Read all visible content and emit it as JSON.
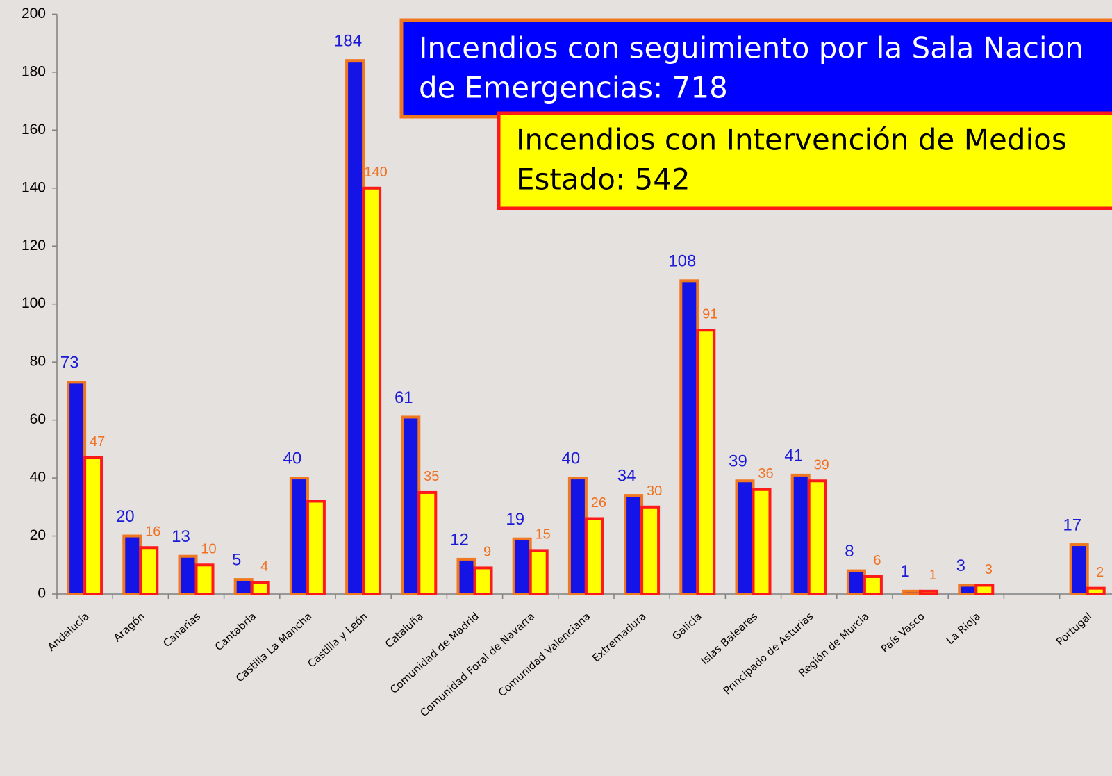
{
  "chart_data": {
    "type": "bar",
    "categories": [
      "Andalucía",
      "Aragón",
      "Canarias",
      "Cantabria",
      "Castilla La Mancha",
      "Castilla y León",
      "Cataluña",
      "Comunidad de Madrid",
      "Comunidad Foral de Navarra",
      "Comunidad Valenciana",
      "Extremadura",
      "Galicia",
      "Islas Baleares",
      "Principado de Asturias",
      "Región de Murcia",
      "País Vasco",
      "La Rioja",
      null,
      "Portugal"
    ],
    "series": [
      {
        "color": "#1414e6",
        "border": "#f07820",
        "label_color": "#1a1ad8",
        "values": [
          73,
          20,
          13,
          5,
          40,
          184,
          61,
          12,
          19,
          40,
          34,
          108,
          39,
          41,
          8,
          1,
          3,
          null,
          17
        ]
      },
      {
        "color": "#ffff00",
        "border": "#ff1a1a",
        "label_color": "#f07020",
        "values": [
          47,
          16,
          10,
          4,
          32,
          140,
          35,
          9,
          15,
          26,
          30,
          91,
          36,
          39,
          6,
          1,
          3,
          null,
          2
        ],
        "value_labels": [
          "47",
          "16",
          "10",
          "4",
          null,
          "140",
          "35",
          "9",
          "15",
          "26",
          "30",
          "91",
          "36",
          "39",
          "6",
          "1",
          "3",
          null,
          "2"
        ]
      }
    ],
    "ylim": [
      0,
      200
    ],
    "yticks": [
      0,
      20,
      40,
      60,
      80,
      100,
      120,
      140,
      160,
      180,
      200
    ],
    "grid": false,
    "annotations": [
      {
        "lines": [
          "Incendios con seguimiento por la Sala Nacion",
          "de Emergencias: 718"
        ],
        "fill": "#0000ff",
        "border": "#f07820",
        "text_color": "#ffffff"
      },
      {
        "lines": [
          "Incendios con Intervención de Medios",
          "Estado: 542"
        ],
        "fill": "#ffff00",
        "border": "#ff1a1a",
        "text_color": "#000000"
      }
    ]
  }
}
